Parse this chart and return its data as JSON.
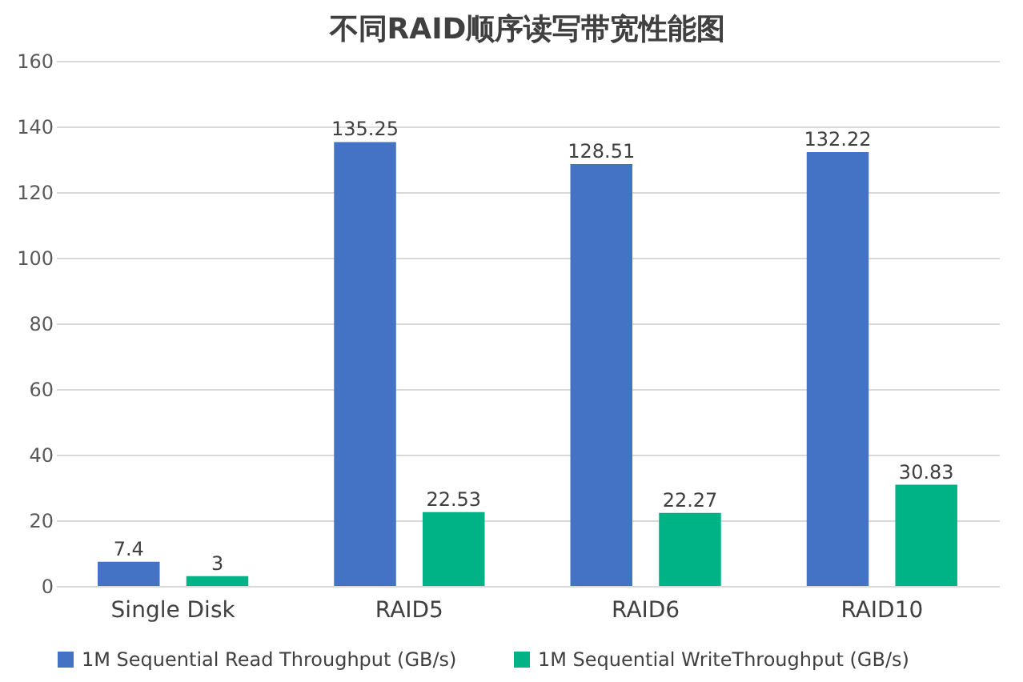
{
  "chart_data": {
    "type": "bar",
    "title": "不同RAID顺序读写带宽性能图",
    "categories": [
      "Single Disk",
      "RAID5",
      "RAID6",
      "RAID10"
    ],
    "series": [
      {
        "name": "1M Sequential  Read Throughput (GB/s)",
        "color": "#4472c4",
        "values": [
          7.4,
          135.25,
          128.51,
          132.22
        ]
      },
      {
        "name": "1M Sequential WriteThroughput (GB/s)",
        "color": "#00b386",
        "values": [
          3,
          22.53,
          22.27,
          30.83
        ]
      }
    ],
    "ylim": [
      0,
      160
    ],
    "yticks": [
      0,
      20,
      40,
      60,
      80,
      100,
      120,
      140,
      160
    ],
    "grid": "y",
    "legend": "bottom",
    "data_labels": true
  }
}
